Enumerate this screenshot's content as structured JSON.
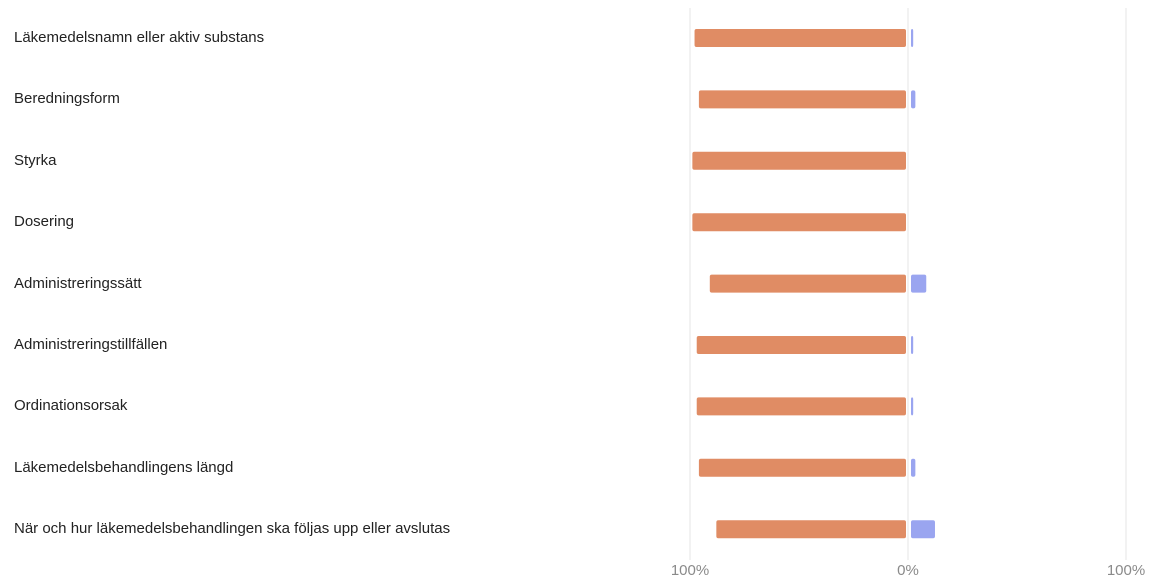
{
  "chart_data": {
    "type": "bar",
    "orientation": "horizontal",
    "diverging": true,
    "categories": [
      "Läkemedelsnamn eller aktiv substans",
      "Beredningsform",
      "Styrka",
      "Dosering",
      "Administreringssätt",
      "Administreringstillfällen",
      "Ordinationsorsak",
      "Läkemedelsbehandlingens längd",
      "När och hur läkemedelsbehandlingen ska följas upp eller avslutas"
    ],
    "series": [
      {
        "side": "left",
        "color": "#e08c64",
        "values": [
          97,
          95,
          98,
          98,
          90,
          96,
          96,
          95,
          87
        ]
      },
      {
        "side": "right",
        "color": "#9aa5f0",
        "values": [
          1,
          2,
          0,
          0,
          7,
          1,
          1,
          2,
          11
        ]
      }
    ],
    "xlim": [
      -100,
      100
    ],
    "tick_labels": [
      "100%",
      "0%",
      "100%"
    ],
    "grid": true
  }
}
